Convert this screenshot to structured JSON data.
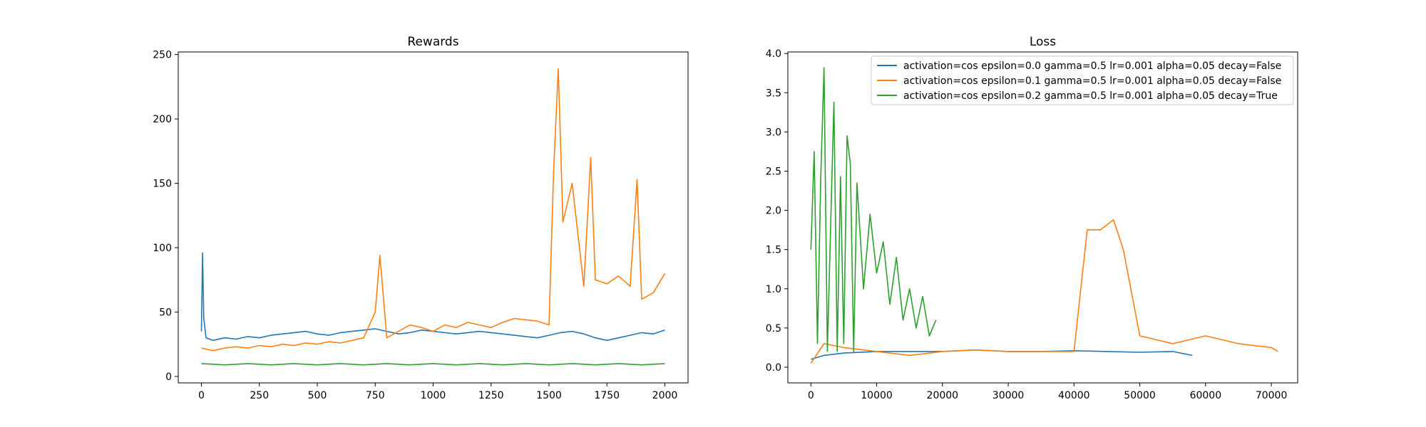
{
  "chart_data": [
    {
      "type": "line",
      "title": "Rewards",
      "xlabel": "",
      "ylabel": "",
      "xlim": [
        -100,
        2100
      ],
      "ylim": [
        -5,
        252
      ],
      "xticks": [
        0,
        250,
        500,
        750,
        1000,
        1250,
        1500,
        1750,
        2000
      ],
      "yticks": [
        0,
        50,
        100,
        150,
        200,
        250
      ],
      "grid": false,
      "legend": false,
      "series": [
        {
          "color": "#1f77b4",
          "x": [
            0,
            5,
            10,
            20,
            50,
            100,
            150,
            200,
            250,
            300,
            350,
            400,
            450,
            500,
            550,
            600,
            650,
            700,
            750,
            800,
            850,
            900,
            950,
            1000,
            1050,
            1100,
            1150,
            1200,
            1250,
            1300,
            1350,
            1400,
            1450,
            1500,
            1550,
            1600,
            1650,
            1700,
            1750,
            1800,
            1850,
            1900,
            1950,
            2000
          ],
          "y": [
            35,
            96,
            45,
            30,
            28,
            30,
            29,
            31,
            30,
            32,
            33,
            34,
            35,
            33,
            32,
            34,
            35,
            36,
            37,
            35,
            33,
            34,
            36,
            35,
            34,
            33,
            34,
            35,
            34,
            33,
            32,
            31,
            30,
            32,
            34,
            35,
            33,
            30,
            28,
            30,
            32,
            34,
            33,
            36
          ]
        },
        {
          "color": "#ff7f0e",
          "x": [
            0,
            50,
            100,
            150,
            200,
            250,
            300,
            350,
            400,
            450,
            500,
            550,
            600,
            650,
            700,
            750,
            770,
            800,
            850,
            900,
            950,
            1000,
            1050,
            1100,
            1150,
            1200,
            1250,
            1300,
            1350,
            1400,
            1450,
            1500,
            1520,
            1540,
            1560,
            1600,
            1650,
            1680,
            1700,
            1750,
            1800,
            1850,
            1880,
            1900,
            1950,
            2000
          ],
          "y": [
            22,
            20,
            22,
            23,
            22,
            24,
            23,
            25,
            24,
            26,
            25,
            27,
            26,
            28,
            30,
            50,
            94,
            30,
            35,
            40,
            38,
            35,
            40,
            38,
            42,
            40,
            38,
            42,
            45,
            44,
            43,
            40,
            160,
            239,
            120,
            150,
            70,
            170,
            75,
            72,
            78,
            70,
            153,
            60,
            65,
            80
          ]
        },
        {
          "color": "#2ca02c",
          "x": [
            0,
            100,
            200,
            300,
            400,
            500,
            600,
            700,
            800,
            900,
            1000,
            1100,
            1200,
            1300,
            1400,
            1500,
            1600,
            1700,
            1800,
            1900,
            2000
          ],
          "y": [
            10,
            9,
            10,
            9,
            10,
            9,
            10,
            9,
            10,
            9,
            10,
            9,
            10,
            9,
            10,
            9,
            10,
            9,
            10,
            9,
            10
          ]
        }
      ]
    },
    {
      "type": "line",
      "title": "Loss",
      "xlabel": "",
      "ylabel": "",
      "xlim": [
        -3500,
        74000
      ],
      "ylim": [
        -0.2,
        4.02
      ],
      "xticks": [
        0,
        10000,
        20000,
        30000,
        40000,
        50000,
        60000,
        70000
      ],
      "yticks": [
        0.0,
        0.5,
        1.0,
        1.5,
        2.0,
        2.5,
        3.0,
        3.5,
        4.0
      ],
      "grid": false,
      "legend": "upper right",
      "series": [
        {
          "name": "activation=cos epsilon=0.0 gamma=0.5 lr=0.001 alpha=0.05 decay=False",
          "color": "#1f77b4",
          "x": [
            0,
            2000,
            5000,
            10000,
            15000,
            20000,
            25000,
            30000,
            35000,
            40000,
            45000,
            50000,
            55000,
            58000
          ],
          "y": [
            0.1,
            0.15,
            0.18,
            0.2,
            0.2,
            0.2,
            0.22,
            0.2,
            0.2,
            0.21,
            0.2,
            0.19,
            0.2,
            0.15
          ]
        },
        {
          "name": "activation=cos epsilon=0.1 gamma=0.5 lr=0.001 alpha=0.05 decay=False",
          "color": "#ff7f0e",
          "x": [
            0,
            2000,
            5000,
            10000,
            15000,
            20000,
            25000,
            30000,
            35000,
            40000,
            42000,
            44000,
            46000,
            47500,
            50000,
            55000,
            60000,
            65000,
            70000,
            71000
          ],
          "y": [
            0.05,
            0.3,
            0.25,
            0.2,
            0.15,
            0.2,
            0.22,
            0.2,
            0.2,
            0.2,
            1.75,
            1.75,
            1.88,
            1.5,
            0.4,
            0.3,
            0.4,
            0.3,
            0.25,
            0.2
          ]
        },
        {
          "name": "activation=cos epsilon=0.2 gamma=0.5 lr=0.001 alpha=0.05 decay=True",
          "color": "#2ca02c",
          "x": [
            0,
            500,
            1000,
            1500,
            2000,
            2500,
            3000,
            3500,
            4000,
            4500,
            5000,
            5500,
            6000,
            6500,
            7000,
            8000,
            9000,
            10000,
            11000,
            12000,
            13000,
            14000,
            15000,
            16000,
            17000,
            18000,
            19000
          ],
          "y": [
            1.5,
            2.75,
            0.3,
            2.4,
            3.82,
            0.2,
            1.8,
            3.38,
            0.2,
            2.43,
            0.3,
            2.95,
            2.6,
            0.2,
            2.35,
            1.0,
            1.95,
            1.2,
            1.6,
            0.8,
            1.4,
            0.6,
            1.0,
            0.5,
            0.9,
            0.4,
            0.6
          ]
        }
      ]
    }
  ]
}
